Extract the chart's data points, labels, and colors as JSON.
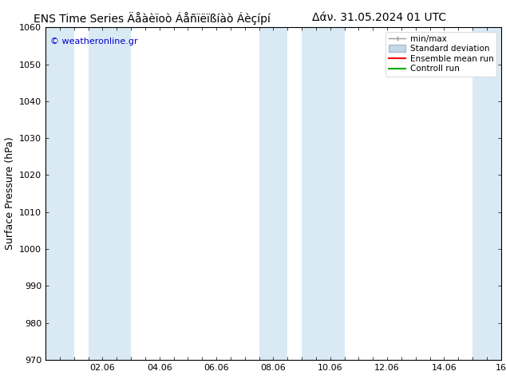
{
  "title_left": "ENS Time Series Äåàèïoò Áåñïëïßíàò Áèçípí",
  "title_right": "Δάν. 31.05.2024 01 UTC",
  "ylabel": "Surface Pressure (hPa)",
  "watermark": "© weatheronline.gr",
  "ylim": [
    970,
    1060
  ],
  "yticks": [
    970,
    980,
    990,
    1000,
    1010,
    1020,
    1030,
    1040,
    1050,
    1060
  ],
  "xlim_start": 0.0,
  "xlim_end": 16.0,
  "xtick_labels": [
    "02.06",
    "04.06",
    "06.06",
    "08.06",
    "10.06",
    "12.06",
    "14.06",
    "16"
  ],
  "xtick_positions": [
    2,
    4,
    6,
    8,
    10,
    12,
    14,
    16
  ],
  "bg_color": "#ffffff",
  "plot_bg_color": "#ffffff",
  "shaded_bands": [
    {
      "x_start": 0.0,
      "x_end": 1.0,
      "color": "#daeaf5"
    },
    {
      "x_start": 1.5,
      "x_end": 3.0,
      "color": "#daeaf5"
    },
    {
      "x_start": 7.5,
      "x_end": 8.5,
      "color": "#daeaf5"
    },
    {
      "x_start": 9.0,
      "x_end": 10.5,
      "color": "#daeaf5"
    },
    {
      "x_start": 15.0,
      "x_end": 16.0,
      "color": "#daeaf5"
    }
  ],
  "legend_labels": [
    "min/max",
    "Standard deviation",
    "Ensemble mean run",
    "Controll run"
  ],
  "legend_colors_line": [
    "#999999",
    "#aabbcc",
    "#ff0000",
    "#00aa00"
  ],
  "legend_lw": [
    1.0,
    6.0,
    1.5,
    1.5
  ],
  "watermark_color": "#0000cc",
  "title_fontsize": 10,
  "axis_label_fontsize": 9,
  "tick_fontsize": 8,
  "legend_fontsize": 7.5
}
